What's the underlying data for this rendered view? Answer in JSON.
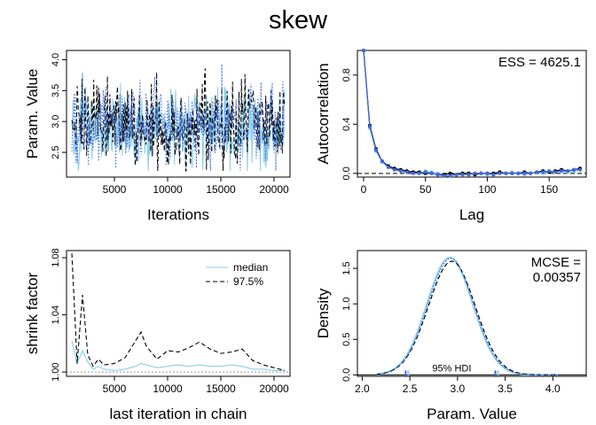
{
  "figure": {
    "title": "skew"
  },
  "colors": {
    "chain1": "#87ceeb",
    "chain2": "#000000",
    "chain3": "#4169e1",
    "dashed_black": "#000000"
  },
  "chart_data": [
    {
      "id": "trace",
      "type": "line",
      "title": "",
      "xlabel": "Iterations",
      "ylabel": "Param. Value",
      "xlim": [
        500,
        21500
      ],
      "ylim": [
        2.1,
        4.15
      ],
      "xticks": [
        5000,
        10000,
        15000,
        20000
      ],
      "xtick_labels": [
        "5000",
        "10000",
        "15000",
        "20000"
      ],
      "yticks": [
        2.5,
        3.0,
        3.5,
        4.0
      ],
      "ytick_labels": [
        "2.5",
        "3.0",
        "3.5",
        "4.0"
      ],
      "center": 2.93,
      "range_observed": [
        2.2,
        4.1
      ],
      "series": [
        {
          "color": "#87ceeb",
          "style": "solid"
        },
        {
          "color": "#000000",
          "style": "dashed"
        },
        {
          "color": "#4169e1",
          "style": "dotted"
        }
      ]
    },
    {
      "id": "autocorrelation",
      "type": "line",
      "title": "",
      "xlabel": "Lag",
      "ylabel": "Autocorrelation",
      "xlim": [
        -5,
        180
      ],
      "ylim": [
        -0.03,
        1.0
      ],
      "xticks": [
        0,
        50,
        100,
        150
      ],
      "xtick_labels": [
        "0",
        "50",
        "100",
        "150"
      ],
      "yticks": [
        0.0,
        0.4,
        0.8
      ],
      "ytick_labels": [
        "0.0",
        "0.4",
        "0.8"
      ],
      "annotation": "ESS = 4625.1",
      "lags": [
        0,
        5,
        10,
        15,
        20,
        25,
        30,
        35,
        40,
        45,
        50,
        55,
        60,
        65,
        70,
        75,
        80,
        85,
        90,
        95,
        100,
        105,
        110,
        115,
        120,
        125,
        130,
        135,
        140,
        145,
        150,
        155,
        160,
        165,
        170,
        175
      ],
      "series": [
        {
          "color": "#87ceeb",
          "values": [
            1.0,
            0.37,
            0.18,
            0.09,
            0.05,
            0.03,
            0.02,
            0.01,
            0.01,
            0.0,
            0.02,
            0.01,
            0.0,
            -0.01,
            -0.02,
            -0.01,
            0.0,
            -0.01,
            0.0,
            0.0,
            -0.01,
            -0.01,
            0.0,
            0.0,
            0.01,
            0.0,
            -0.01,
            0.0,
            0.01,
            0.0,
            0.01,
            0.01,
            0.02,
            0.01,
            0.02,
            0.03
          ]
        },
        {
          "color": "#000000",
          "values": [
            1.0,
            0.39,
            0.2,
            0.1,
            0.06,
            0.04,
            0.03,
            0.02,
            0.01,
            0.01,
            0.0,
            0.0,
            -0.01,
            -0.01,
            0.0,
            -0.01,
            0.0,
            0.0,
            -0.01,
            0.0,
            0.0,
            0.0,
            0.01,
            0.0,
            0.0,
            0.0,
            0.01,
            0.0,
            0.01,
            0.02,
            0.01,
            0.02,
            0.03,
            0.02,
            0.03,
            0.04
          ]
        },
        {
          "color": "#4169e1",
          "values": [
            1.0,
            0.38,
            0.19,
            0.1,
            0.05,
            0.03,
            0.02,
            0.01,
            0.0,
            0.0,
            0.01,
            0.0,
            -0.01,
            -0.02,
            -0.02,
            -0.01,
            -0.01,
            -0.01,
            0.0,
            0.0,
            0.0,
            -0.01,
            0.0,
            0.0,
            0.0,
            0.0,
            0.0,
            0.0,
            0.01,
            0.01,
            0.02,
            0.01,
            0.02,
            0.02,
            0.03,
            0.03
          ]
        }
      ]
    },
    {
      "id": "gelman",
      "type": "line",
      "title": "",
      "xlabel": "last iteration in chain",
      "ylabel": "shrink factor",
      "xlim": [
        500,
        21500
      ],
      "ylim": [
        0.997,
        1.085
      ],
      "xticks": [
        5000,
        10000,
        15000,
        20000
      ],
      "xtick_labels": [
        "5000",
        "10000",
        "15000",
        "20000"
      ],
      "yticks": [
        1.0,
        1.04,
        1.08
      ],
      "ytick_labels": [
        "1.00",
        "1.04",
        "1.08"
      ],
      "legend": {
        "position": "top-right",
        "entries": [
          "median",
          "97.5%"
        ]
      },
      "x": [
        1000,
        1500,
        2000,
        2500,
        3000,
        3500,
        4000,
        5000,
        6000,
        7000,
        7500,
        8000,
        9000,
        10000,
        11000,
        12000,
        13000,
        14000,
        15000,
        16000,
        17000,
        18000,
        19000,
        20000,
        21000
      ],
      "series": [
        {
          "name": "median",
          "color": "#87ceeb",
          "style": "solid",
          "values": [
            1.022,
            1.006,
            1.015,
            1.007,
            1.002,
            1.004,
            1.002,
            1.001,
            1.002,
            1.004,
            1.006,
            1.005,
            1.003,
            1.004,
            1.005,
            1.004,
            1.005,
            1.004,
            1.004,
            1.005,
            1.004,
            1.002,
            1.002,
            1.001,
            1.001
          ]
        },
        {
          "name": "97.5%",
          "color": "#000000",
          "style": "dashed",
          "values": [
            1.083,
            1.006,
            1.054,
            1.012,
            1.004,
            1.009,
            1.005,
            1.006,
            1.01,
            1.022,
            1.028,
            1.018,
            1.009,
            1.015,
            1.014,
            1.017,
            1.021,
            1.016,
            1.013,
            1.014,
            1.016,
            1.008,
            1.005,
            1.003,
            1.001
          ]
        }
      ]
    },
    {
      "id": "density",
      "type": "area",
      "title": "",
      "xlabel": "Param. Value",
      "ylabel": "Density",
      "xlim": [
        1.95,
        4.35
      ],
      "ylim": [
        -0.02,
        1.75
      ],
      "xticks": [
        2.0,
        2.5,
        3.0,
        3.5,
        4.0
      ],
      "xtick_labels": [
        "2.0",
        "2.5",
        "3.0",
        "3.5",
        "4.0"
      ],
      "yticks": [
        0.0,
        0.5,
        1.0,
        1.5
      ],
      "ytick_labels": [
        "0.0",
        "0.5",
        "1.0",
        "1.5"
      ],
      "annotation": [
        "MCSE =",
        "0.00357"
      ],
      "hdi": {
        "label": "95% HDI",
        "low": 2.47,
        "high": 3.41
      },
      "series": [
        {
          "color": "#87ceeb",
          "style": "solid",
          "mean": 2.92,
          "sd": 0.24,
          "peak": 1.65
        },
        {
          "color": "#000000",
          "style": "dashed",
          "mean": 2.94,
          "sd": 0.245,
          "peak": 1.6
        },
        {
          "color": "#4169e1",
          "style": "dotted",
          "mean": 2.93,
          "sd": 0.24,
          "peak": 1.64
        }
      ]
    }
  ]
}
